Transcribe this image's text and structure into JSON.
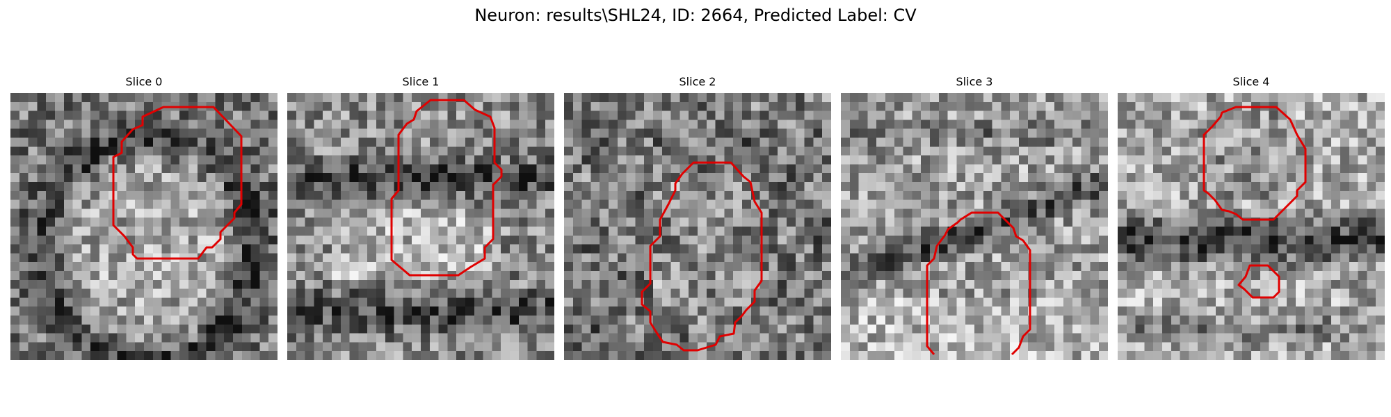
{
  "title": "Neuron: results\\SHL24, ID: 2664, Predicted Label: CV",
  "contour_color": "#e00000",
  "slices": [
    {
      "label": "Slice 0",
      "contour_icon": "cell-outline-icon"
    },
    {
      "label": "Slice 1",
      "contour_icon": "cell-outline-icon"
    },
    {
      "label": "Slice 2",
      "contour_icon": "cell-outline-icon"
    },
    {
      "label": "Slice 3",
      "contour_icon": "cell-outline-icon"
    },
    {
      "label": "Slice 4",
      "contour_icon": "cell-outline-icon"
    }
  ]
}
